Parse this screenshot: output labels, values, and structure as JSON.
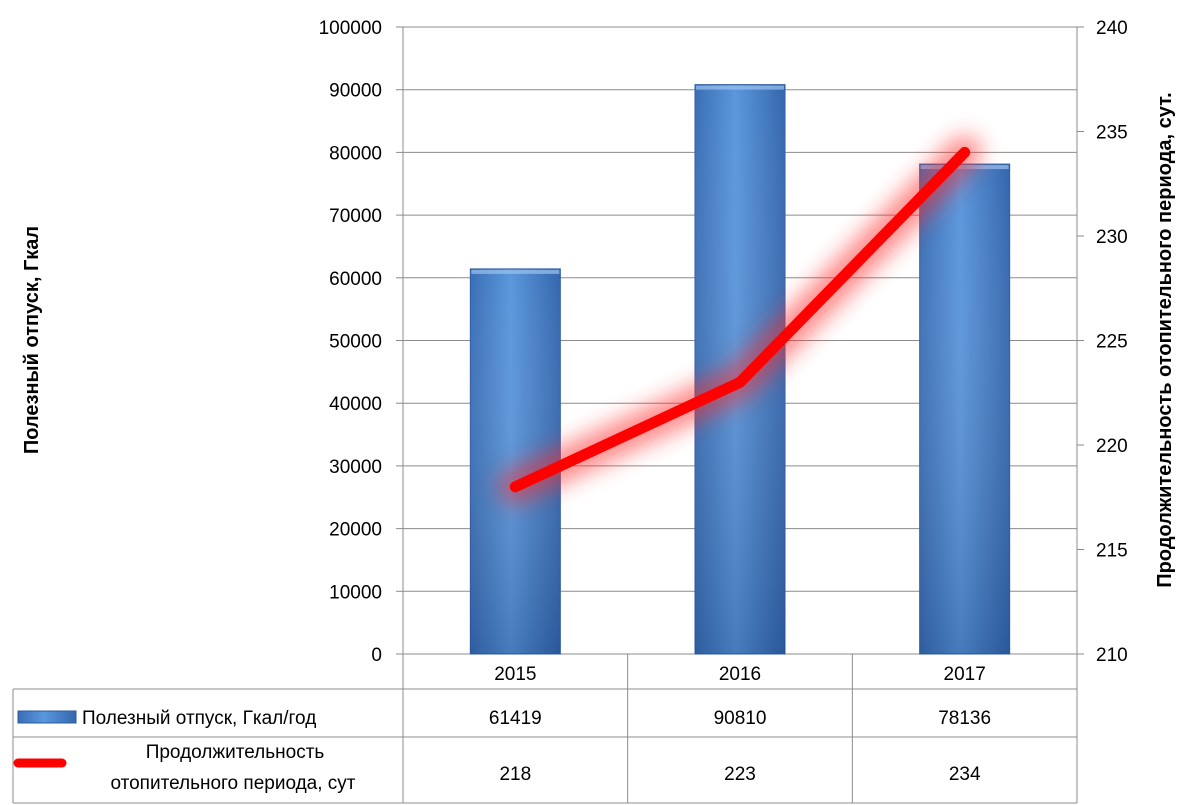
{
  "chart_data": {
    "type": "bar",
    "categories": [
      "2015",
      "2016",
      "2017"
    ],
    "series": [
      {
        "name": "Полезный отпуск, Гкал/год",
        "type": "bar",
        "axis": "left",
        "color": "#4a86cf",
        "values": [
          61419,
          90810,
          78136
        ]
      },
      {
        "name": "Продолжительность отопительного периода, сут",
        "name_lines": [
          "Продолжительность",
          "отопительного периода, сут"
        ],
        "type": "line",
        "axis": "right",
        "color": "#ff0000",
        "values": [
          218,
          223,
          234
        ]
      }
    ],
    "ylabel": "Полезный отпуск, Гкал",
    "ylabel_right": "Продолжительность отопительного периода, сут.",
    "ylim": [
      0,
      100000
    ],
    "ylim_right": [
      210,
      240
    ],
    "yticks": [
      "0",
      "10000",
      "20000",
      "30000",
      "40000",
      "50000",
      "60000",
      "70000",
      "80000",
      "90000",
      "100000"
    ],
    "yticks_right": [
      "210",
      "215",
      "220",
      "225",
      "230",
      "235",
      "240"
    ],
    "table_values": [
      [
        "61419",
        "90810",
        "78136"
      ],
      [
        "218",
        "223",
        "234"
      ]
    ],
    "grid": true,
    "legend": "data-table"
  }
}
